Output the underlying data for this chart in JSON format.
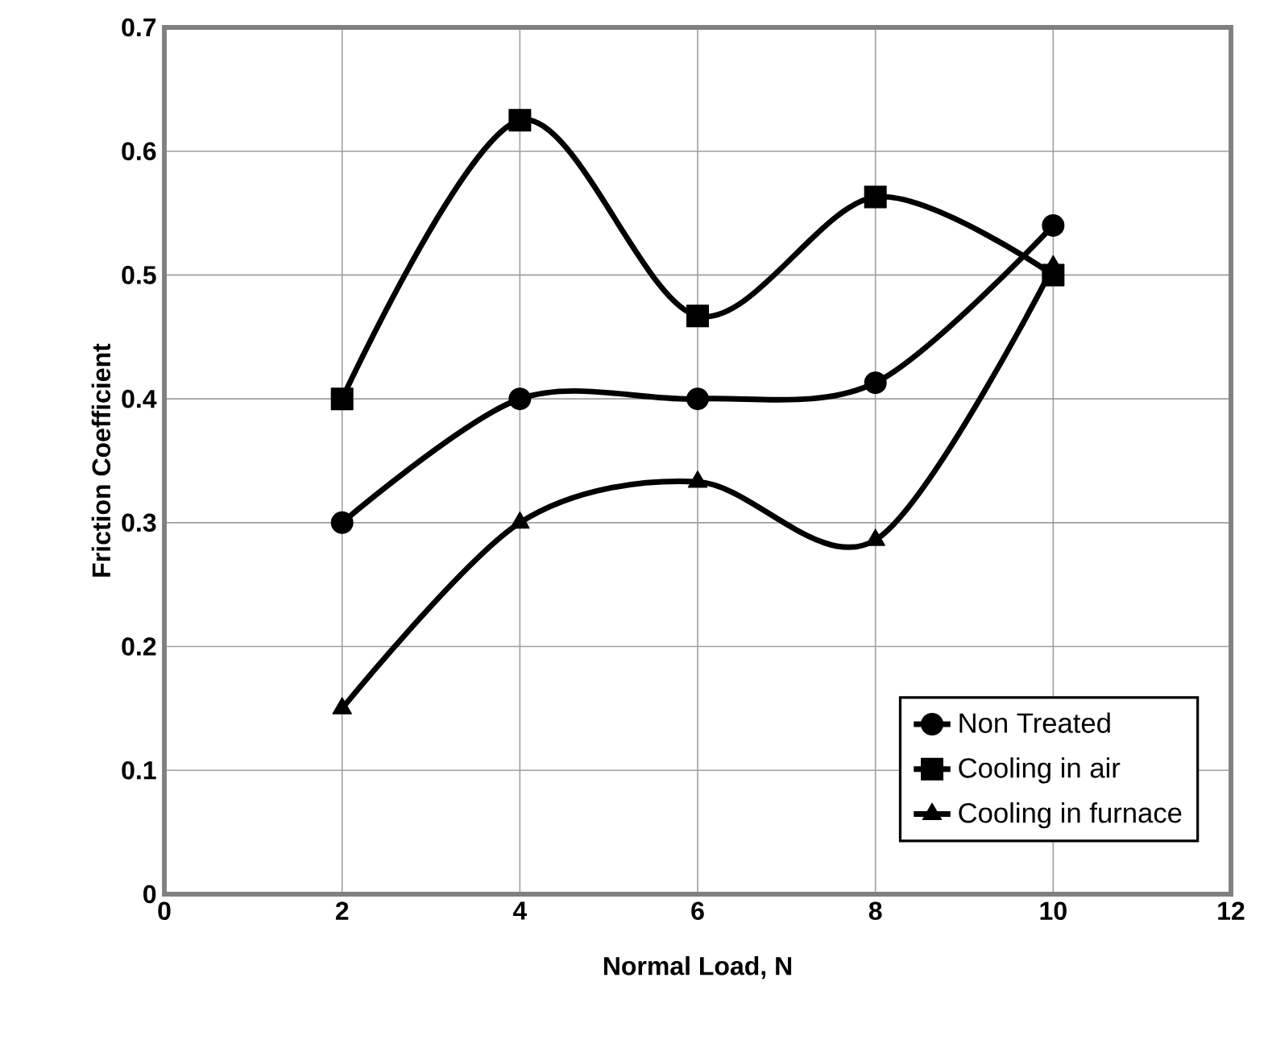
{
  "chart_data": {
    "type": "line",
    "xlabel": "Normal Load, N",
    "ylabel": "Friction Coefficient",
    "x": [
      2,
      4,
      6,
      8,
      10
    ],
    "series": [
      {
        "name": "Non Treated",
        "color": "#000000",
        "marker": "circle",
        "values": [
          0.3,
          0.4,
          0.4,
          0.413,
          0.54
        ]
      },
      {
        "name": "Cooling in air",
        "color": "#000000",
        "marker": "square",
        "values": [
          0.4,
          0.625,
          0.467,
          0.563,
          0.5
        ]
      },
      {
        "name": "Cooling in furnace",
        "color": "#000000",
        "marker": "triangle",
        "values": [
          0.15,
          0.3,
          0.333,
          0.286,
          0.507
        ]
      }
    ],
    "xlim": [
      0,
      12
    ],
    "xticks": [
      0,
      2,
      4,
      6,
      8,
      10,
      12
    ],
    "ylim": [
      0,
      0.7
    ],
    "yticks": [
      0,
      0.1,
      0.2,
      0.3,
      0.4,
      0.5,
      0.6,
      0.7
    ],
    "grid": true,
    "legend": "bottom right",
    "line_style": "solid"
  }
}
